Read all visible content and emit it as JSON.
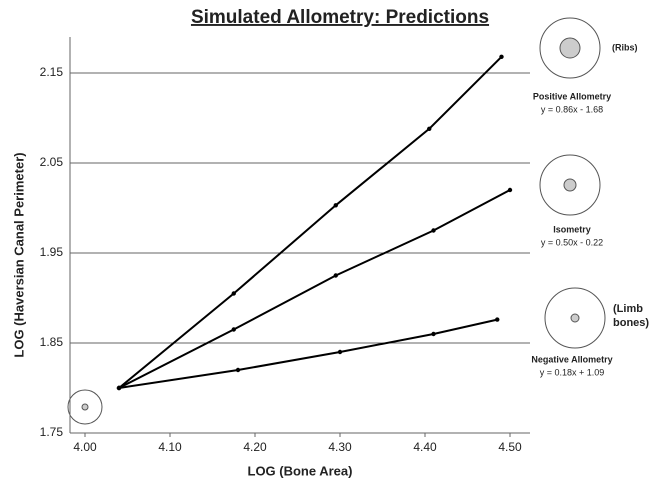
{
  "chart_data": {
    "type": "line",
    "title": "Simulated Allometry: Predictions",
    "x_label": "LOG (Bone Area)",
    "y_label": "LOG (Haversian Canal Perimeter)",
    "xlim": [
      4.0,
      4.5
    ],
    "ylim": [
      1.75,
      2.19
    ],
    "xticks": [
      {
        "value": 4.0,
        "label": "4.00"
      },
      {
        "value": 4.1,
        "label": "4.10"
      },
      {
        "value": 4.2,
        "label": "4.20"
      },
      {
        "value": 4.3,
        "label": "4.30"
      },
      {
        "value": 4.4,
        "label": "4.40"
      },
      {
        "value": 4.5,
        "label": "4.50"
      }
    ],
    "yticks": [
      1.75,
      1.85,
      1.95,
      2.05,
      2.15
    ],
    "grid": true,
    "annotations": [
      "(Ribs)",
      "(Limb bones)"
    ],
    "series": [
      {
        "name": "Positive Allometry",
        "equation": "y = 0.86x - 1.68",
        "color": "#000000",
        "x": [
          4.04,
          4.175,
          4.295,
          4.405,
          4.49
        ],
        "values": [
          1.8,
          1.905,
          2.003,
          2.088,
          2.168
        ]
      },
      {
        "name": "Isometry",
        "equation": "y = 0.50x - 0.22",
        "color": "#000000",
        "x": [
          4.04,
          4.175,
          4.295,
          4.41,
          4.5
        ],
        "values": [
          1.8,
          1.865,
          1.925,
          1.975,
          2.02
        ]
      },
      {
        "name": "Negative Allometry",
        "equation": "y = 0.18x + 1.09",
        "color": "#000000",
        "x": [
          4.04,
          4.18,
          4.3,
          4.41,
          4.485
        ],
        "values": [
          1.8,
          1.82,
          1.84,
          1.86,
          1.876
        ]
      }
    ]
  }
}
